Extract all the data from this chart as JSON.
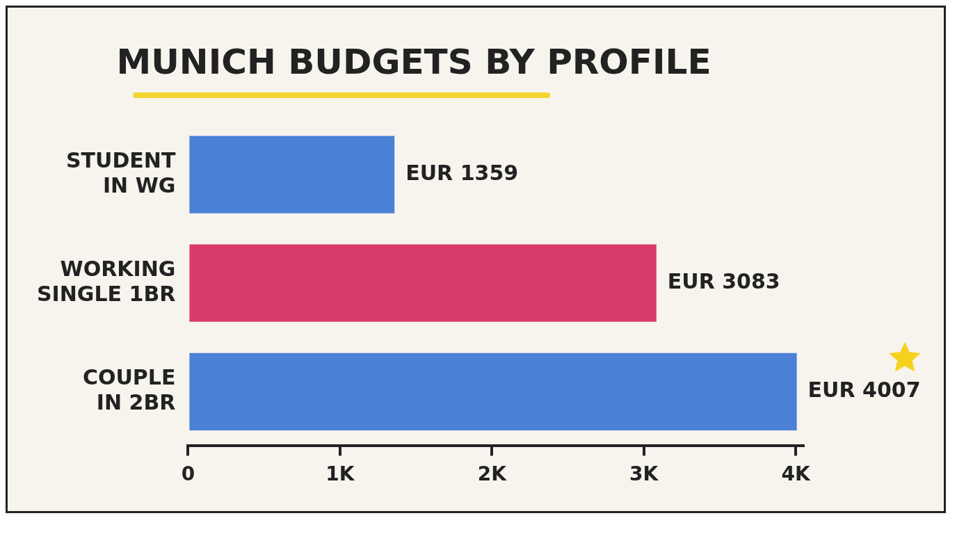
{
  "chart_data": {
    "type": "bar",
    "orientation": "horizontal",
    "title": "MUNICH BUDGETS BY PROFILE",
    "categories": [
      "STUDENT IN WG",
      "WORKING SINGLE 1BR",
      "COUPLE IN 2BR"
    ],
    "values": [
      1359,
      3083,
      4007
    ],
    "colors": [
      "#4a80d6",
      "#d83a6a",
      "#4a80d6"
    ],
    "value_labels": [
      "EUR 1359",
      "EUR 3083",
      "EUR 4007"
    ],
    "xlim": [
      0,
      4050
    ],
    "xticks": [
      0,
      {
        "value": 1000,
        "label": "1K"
      },
      {
        "value": 2000,
        "label": "2K"
      },
      {
        "value": 3000,
        "label": "3K"
      },
      {
        "value": 4000,
        "label": "4K"
      }
    ],
    "grid": false,
    "legend": false
  }
}
